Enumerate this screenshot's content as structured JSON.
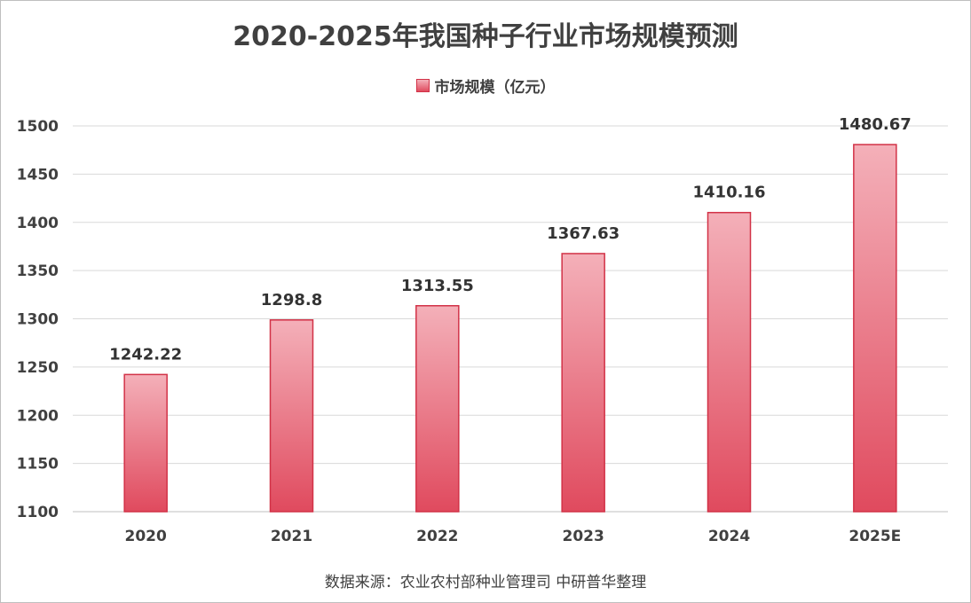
{
  "chart_data": {
    "type": "bar",
    "title": "2020-2025年我国种子行业市场规模预测",
    "categories": [
      "2020",
      "2021",
      "2022",
      "2023",
      "2024",
      "2025E"
    ],
    "series": [
      {
        "name": "市场规模（亿元）",
        "values": [
          1242.22,
          1298.8,
          1313.55,
          1367.63,
          1410.16,
          1480.67
        ],
        "labels": [
          "1242.22",
          "1298.8",
          "1313.55",
          "1367.63",
          "1410.16",
          "1480.67"
        ]
      }
    ],
    "ylim": [
      1100,
      1500
    ],
    "yticks": [
      1100,
      1150,
      1200,
      1250,
      1300,
      1350,
      1400,
      1450,
      1500
    ],
    "grid": true,
    "legend_position": "top-center",
    "bar_color_top": "#f4b0b9",
    "bar_color_bottom": "#e04a5e",
    "bar_border_color": "#d23247"
  },
  "source_note": "数据来源：农业农村部种业管理司 中研普华整理"
}
